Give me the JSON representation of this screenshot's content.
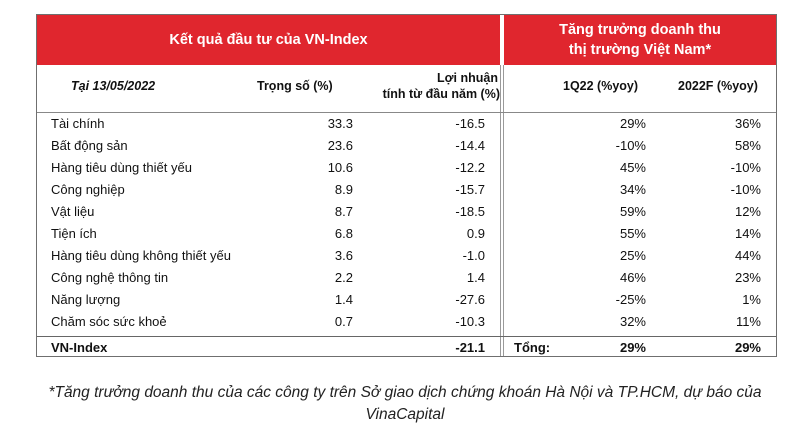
{
  "header": {
    "left_title": "Kết quả đầu tư của VN-Index",
    "right_title_line1": "Tăng trưởng doanh thu",
    "right_title_line2": "thị trường Việt Nam*"
  },
  "columns": {
    "date": "Tại 13/05/2022",
    "weight": "Trọng số (%)",
    "profit_line1": "Lợi nhuận",
    "profit_line2": "tính từ đầu năm (%)",
    "q1": "1Q22 (%yoy)",
    "forecast": "2022F (%yoy)"
  },
  "rows": [
    {
      "name": "Tài chính",
      "weight": "33.3",
      "profit": "-16.5",
      "q1": "29%",
      "forecast": "36%"
    },
    {
      "name": "Bất động sản",
      "weight": "23.6",
      "profit": "-14.4",
      "q1": "-10%",
      "forecast": "58%"
    },
    {
      "name": "Hàng tiêu dùng thiết yếu",
      "weight": "10.6",
      "profit": "-12.2",
      "q1": "45%",
      "forecast": "-10%"
    },
    {
      "name": "Công nghiệp",
      "weight": "8.9",
      "profit": "-15.7",
      "q1": "34%",
      "forecast": "-10%"
    },
    {
      "name": "Vật liệu",
      "weight": "8.7",
      "profit": "-18.5",
      "q1": "59%",
      "forecast": "12%"
    },
    {
      "name": "Tiện ích",
      "weight": "6.8",
      "profit": "0.9",
      "q1": "55%",
      "forecast": "14%"
    },
    {
      "name": "Hàng tiêu dùng không thiết yếu",
      "weight": "3.6",
      "profit": "-1.0",
      "q1": "25%",
      "forecast": "44%"
    },
    {
      "name": "Công nghệ thông tin",
      "weight": "2.2",
      "profit": "1.4",
      "q1": "46%",
      "forecast": "23%"
    },
    {
      "name": "Năng lượng",
      "weight": "1.4",
      "profit": "-27.6",
      "q1": "-25%",
      "forecast": "1%"
    },
    {
      "name": "Chăm sóc sức khoẻ",
      "weight": "0.7",
      "profit": "-10.3",
      "q1": "32%",
      "forecast": "11%"
    }
  ],
  "total": {
    "name": "VN-Index",
    "profit": "-21.1",
    "label": "Tổng:",
    "q1": "29%",
    "forecast": "29%"
  },
  "footnote_line1": "*Tăng trưởng doanh thu của các công ty trên Sở giao dịch chứng khoán Hà Nội và TP.HCM, dự báo của",
  "footnote_line2": "VinaCapital",
  "colors": {
    "header_bg": "#e0262e",
    "header_text": "#ffffff"
  }
}
